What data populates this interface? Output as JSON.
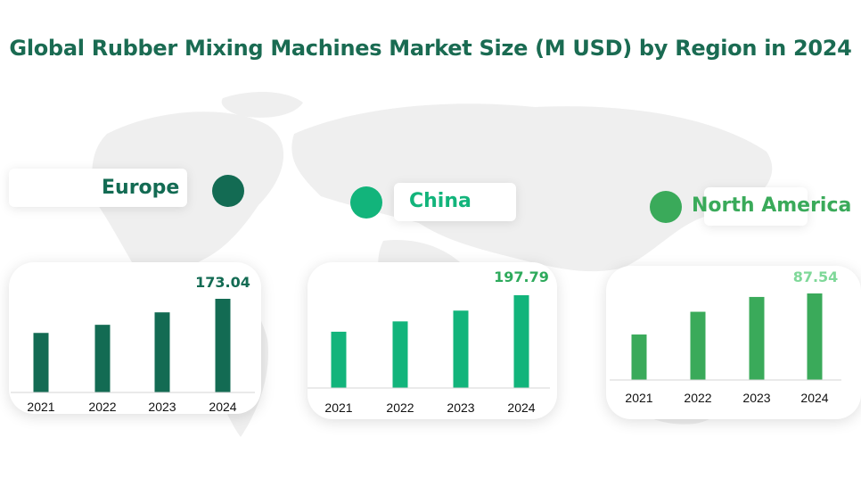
{
  "title": "Global Rubber Mixing Machines Market Size (M USD) by Region in 2024",
  "chart_data": [
    {
      "type": "bar",
      "series": [
        {
          "name": "Europe",
          "values": [
            110,
            125,
            148,
            173.04
          ]
        }
      ],
      "categories": [
        "2021",
        "2022",
        "2023",
        "2024"
      ],
      "data_labels": {
        "2024": "173.04"
      },
      "color": "#136b53",
      "label_color": "#136b53"
    },
    {
      "type": "bar",
      "series": [
        {
          "name": "China",
          "values": [
            120,
            142,
            165,
            197.79
          ]
        }
      ],
      "categories": [
        "2021",
        "2022",
        "2023",
        "2024"
      ],
      "data_labels": {
        "2024": "197.79"
      },
      "color": "#12b47b",
      "label_color": "#2eaa5c"
    },
    {
      "type": "bar",
      "series": [
        {
          "name": "North America",
          "values": [
            46,
            69,
            84,
            87.54
          ]
        }
      ],
      "categories": [
        "2021",
        "2022",
        "2023",
        "2024"
      ],
      "data_labels": {
        "2024": "87.54"
      },
      "color": "#3aaa5a",
      "label_color": "#7fd899"
    }
  ]
}
